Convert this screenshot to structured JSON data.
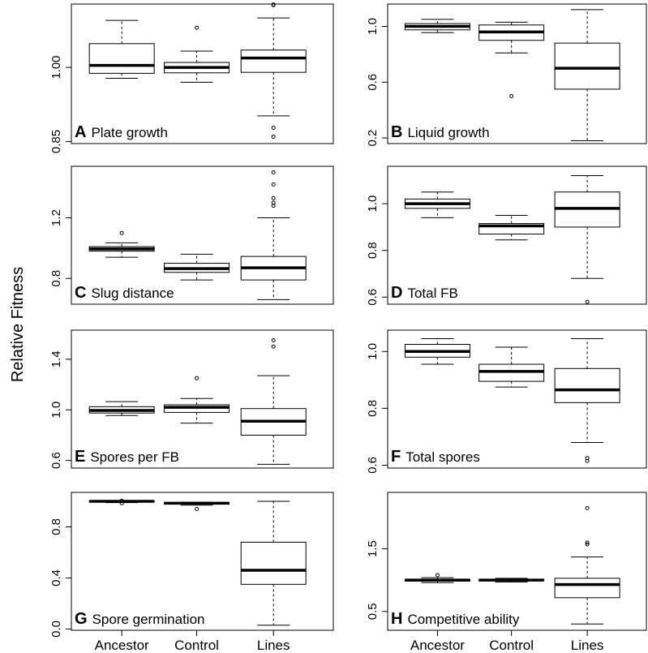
{
  "figure": {
    "ylabel": "Relative Fitness",
    "groups": [
      "Ancestor",
      "Control",
      "Lines"
    ]
  },
  "chart_data": [
    {
      "type": "boxplot",
      "letter": "A",
      "label": "Plate growth",
      "ylim": [
        0.846,
        1.128
      ],
      "ticks": [
        0.85,
        1.0
      ],
      "tick_labels": [
        "0.85",
        "1.00"
      ],
      "boxes": [
        {
          "group": "Ancestor",
          "whisker_low": 0.978,
          "q1": 0.988,
          "median": 1.004,
          "q3": 1.048,
          "whisker_high": 1.095,
          "outliers": []
        },
        {
          "group": "Control",
          "whisker_low": 0.97,
          "q1": 0.989,
          "median": 1.0,
          "q3": 1.01,
          "whisker_high": 1.033,
          "outliers": [
            1.08
          ]
        },
        {
          "group": "Lines",
          "whisker_low": 0.902,
          "q1": 0.99,
          "median": 1.019,
          "q3": 1.035,
          "whisker_high": 1.1,
          "outliers": [
            0.878,
            0.86,
            1.126,
            1.127
          ]
        }
      ]
    },
    {
      "type": "boxplot",
      "letter": "B",
      "label": "Liquid growth",
      "ylim": [
        0.16,
        1.16
      ],
      "ticks": [
        0.2,
        0.6,
        1.0
      ],
      "tick_labels": [
        "0.2",
        "0.6",
        "1.0"
      ],
      "boxes": [
        {
          "group": "Ancestor",
          "whisker_low": 0.955,
          "q1": 0.975,
          "median": 1.0,
          "q3": 1.02,
          "whisker_high": 1.05,
          "outliers": []
        },
        {
          "group": "Control",
          "whisker_low": 0.81,
          "q1": 0.9,
          "median": 0.96,
          "q3": 1.01,
          "whisker_high": 1.03,
          "outliers": [
            0.5
          ]
        },
        {
          "group": "Lines",
          "whisker_low": 0.18,
          "q1": 0.55,
          "median": 0.7,
          "q3": 0.88,
          "whisker_high": 1.12,
          "outliers": []
        }
      ]
    },
    {
      "type": "boxplot",
      "letter": "C",
      "label": "Slug distance",
      "ylim": [
        0.63,
        1.54
      ],
      "ticks": [
        0.8,
        1.2
      ],
      "tick_labels": [
        "0.8",
        "1.2"
      ],
      "boxes": [
        {
          "group": "Ancestor",
          "whisker_low": 0.94,
          "q1": 0.98,
          "median": 0.995,
          "q3": 1.01,
          "whisker_high": 1.035,
          "outliers": [
            1.1
          ]
        },
        {
          "group": "Control",
          "whisker_low": 0.79,
          "q1": 0.84,
          "median": 0.865,
          "q3": 0.9,
          "whisker_high": 0.96,
          "outliers": []
        },
        {
          "group": "Lines",
          "whisker_low": 0.66,
          "q1": 0.79,
          "median": 0.87,
          "q3": 0.945,
          "whisker_high": 1.2,
          "outliers": [
            1.28,
            1.3,
            1.33,
            1.42,
            1.5
          ]
        }
      ]
    },
    {
      "type": "boxplot",
      "letter": "D",
      "label": "Total FB",
      "ylim": [
        0.57,
        1.16
      ],
      "ticks": [
        0.6,
        0.8,
        1.0
      ],
      "tick_labels": [
        "0.6",
        "0.8",
        "1.0"
      ],
      "boxes": [
        {
          "group": "Ancestor",
          "whisker_low": 0.94,
          "q1": 0.98,
          "median": 1.0,
          "q3": 1.02,
          "whisker_high": 1.05,
          "outliers": []
        },
        {
          "group": "Control",
          "whisker_low": 0.845,
          "q1": 0.87,
          "median": 0.905,
          "q3": 0.915,
          "whisker_high": 0.95,
          "outliers": []
        },
        {
          "group": "Lines",
          "whisker_low": 0.68,
          "q1": 0.9,
          "median": 0.98,
          "q3": 1.05,
          "whisker_high": 1.12,
          "outliers": [
            0.58
          ]
        }
      ]
    },
    {
      "type": "boxplot",
      "letter": "E",
      "label": "Spores per FB",
      "ylim": [
        0.54,
        1.63
      ],
      "ticks": [
        0.6,
        1.0,
        1.4
      ],
      "tick_labels": [
        "0.6",
        "1.0",
        "1.4"
      ],
      "boxes": [
        {
          "group": "Ancestor",
          "whisker_low": 0.955,
          "q1": 0.975,
          "median": 0.995,
          "q3": 1.025,
          "whisker_high": 1.065,
          "outliers": []
        },
        {
          "group": "Control",
          "whisker_low": 0.895,
          "q1": 0.98,
          "median": 1.02,
          "q3": 1.04,
          "whisker_high": 1.09,
          "outliers": [
            1.25
          ]
        },
        {
          "group": "Lines",
          "whisker_low": 0.57,
          "q1": 0.8,
          "median": 0.91,
          "q3": 1.01,
          "whisker_high": 1.27,
          "outliers": [
            1.5,
            1.55
          ]
        }
      ]
    },
    {
      "type": "boxplot",
      "letter": "F",
      "label": "Total spores",
      "ylim": [
        0.59,
        1.075
      ],
      "ticks": [
        0.6,
        0.8,
        1.0
      ],
      "tick_labels": [
        "0.6",
        "0.8",
        "1.0"
      ],
      "boxes": [
        {
          "group": "Ancestor",
          "whisker_low": 0.955,
          "q1": 0.98,
          "median": 1.0,
          "q3": 1.025,
          "whisker_high": 1.045,
          "outliers": []
        },
        {
          "group": "Control",
          "whisker_low": 0.875,
          "q1": 0.895,
          "median": 0.93,
          "q3": 0.955,
          "whisker_high": 1.015,
          "outliers": []
        },
        {
          "group": "Lines",
          "whisker_low": 0.68,
          "q1": 0.82,
          "median": 0.865,
          "q3": 0.94,
          "whisker_high": 1.045,
          "outliers": [
            0.615,
            0.625
          ]
        }
      ]
    },
    {
      "type": "boxplot",
      "letter": "G",
      "label": "Spore germination",
      "ylim": [
        -0.01,
        1.07
      ],
      "ticks": [
        0.0,
        0.4,
        0.8
      ],
      "tick_labels": [
        "0.0",
        "0.4",
        "0.8"
      ],
      "boxes": [
        {
          "group": "Ancestor",
          "whisker_low": 0.99,
          "q1": 0.995,
          "median": 1.0,
          "q3": 1.003,
          "whisker_high": 1.005,
          "outliers": [
            0.985,
            1.005
          ]
        },
        {
          "group": "Control",
          "whisker_low": 0.97,
          "q1": 0.98,
          "median": 0.985,
          "q3": 0.99,
          "whisker_high": 0.993,
          "outliers": [
            0.94
          ]
        },
        {
          "group": "Lines",
          "whisker_low": 0.03,
          "q1": 0.35,
          "median": 0.46,
          "q3": 0.68,
          "whisker_high": 1.0,
          "outliers": []
        }
      ]
    },
    {
      "type": "boxplot",
      "letter": "H",
      "label": "Competitive ability",
      "ylim": [
        0.2,
        2.4
      ],
      "ticks": [
        0.5,
        1.5
      ],
      "tick_labels": [
        "0.5",
        "1.5"
      ],
      "boxes": [
        {
          "group": "Ancestor",
          "whisker_low": 0.96,
          "q1": 0.985,
          "median": 1.0,
          "q3": 1.01,
          "whisker_high": 1.04,
          "outliers": [
            1.08
          ]
        },
        {
          "group": "Control",
          "whisker_low": 0.97,
          "q1": 0.99,
          "median": 1.0,
          "q3": 1.01,
          "whisker_high": 1.03,
          "outliers": []
        },
        {
          "group": "Lines",
          "whisker_low": 0.3,
          "q1": 0.72,
          "median": 0.93,
          "q3": 1.03,
          "whisker_high": 1.37,
          "outliers": [
            1.57,
            1.6,
            2.15
          ]
        }
      ]
    }
  ]
}
